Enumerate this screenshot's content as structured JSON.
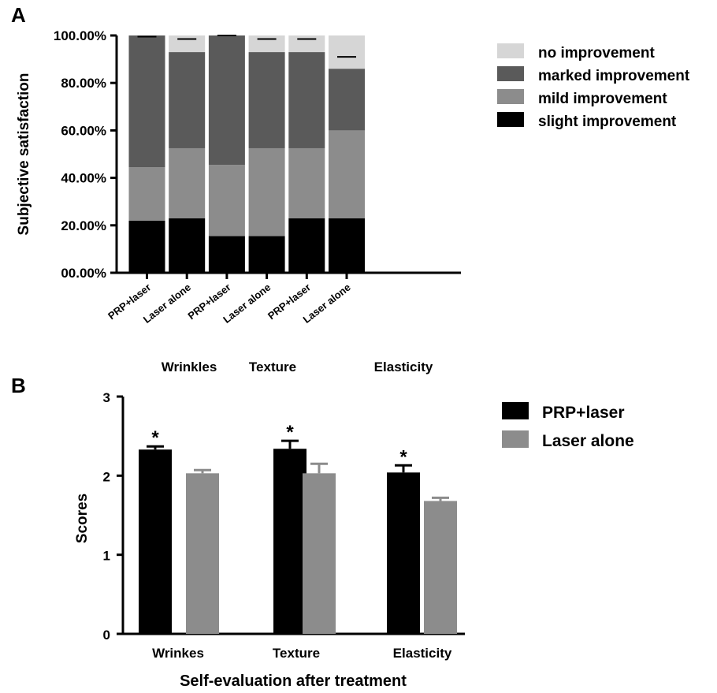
{
  "figure": {
    "panel_a_letter": "A",
    "panel_b_letter": "B"
  },
  "colors": {
    "no_improvement": "#d6d6d6",
    "marked_improvement": "#5a5a5a",
    "mild_improvement": "#8c8c8c",
    "slight_improvement": "#000000",
    "prp_laser": "#000000",
    "laser_alone": "#8c8c8c",
    "axis": "#000000"
  },
  "chart_data": [
    {
      "type": "bar",
      "stacked": true,
      "ylabel": "Subjective satisfaction",
      "xlabel": "",
      "ylim": [
        0,
        100
      ],
      "y_ticks": [
        "00.00%",
        "20.00%",
        "40.00%",
        "60.00%",
        "80.00%",
        "100.00%"
      ],
      "y_tick_values": [
        0,
        20,
        40,
        60,
        80,
        100
      ],
      "categories": [
        "PRP+laser",
        "Laser alone",
        "PRP+laser",
        "Laser alone",
        "PRP+laser",
        "Laser alone"
      ],
      "groups": [
        "Wrinkles",
        "Texture",
        "Elasticity"
      ],
      "series": [
        {
          "name": "slight improvement",
          "values": [
            22,
            23,
            15.5,
            15.5,
            23,
            23
          ]
        },
        {
          "name": "mild improvement",
          "values": [
            22.5,
            29.5,
            30,
            37,
            29.5,
            37
          ]
        },
        {
          "name": "marked improvement",
          "values": [
            55.5,
            40.5,
            54.5,
            40.5,
            40.5,
            26
          ]
        },
        {
          "name": "no improvement",
          "values": [
            0,
            7,
            0,
            7,
            7,
            14
          ]
        }
      ],
      "error_bar_tops": [
        99.5,
        98.5,
        100,
        98.5,
        98.5,
        91
      ],
      "legend_order": [
        "no improvement",
        "marked improvement",
        "mild improvement",
        "slight improvement"
      ],
      "legend_position": "right",
      "grid": false
    },
    {
      "type": "bar",
      "ylabel": "Scores",
      "xlabel": "Self-evaluation after treatment",
      "ylim": [
        0,
        3
      ],
      "y_ticks": [
        "0",
        "1",
        "2",
        "3"
      ],
      "y_tick_values": [
        0,
        1,
        2,
        3
      ],
      "categories": [
        "Wrinkes",
        "Texture",
        "Elasticity"
      ],
      "series": [
        {
          "name": "PRP+laser",
          "values": [
            2.33,
            2.34,
            2.04
          ],
          "errors": [
            0.04,
            0.1,
            0.09
          ]
        },
        {
          "name": "Laser alone",
          "values": [
            2.03,
            2.03,
            1.68
          ],
          "errors": [
            0.04,
            0.12,
            0.04
          ]
        }
      ],
      "significance": [
        "*",
        "*",
        "*"
      ],
      "legend_position": "right",
      "grid": false
    }
  ]
}
